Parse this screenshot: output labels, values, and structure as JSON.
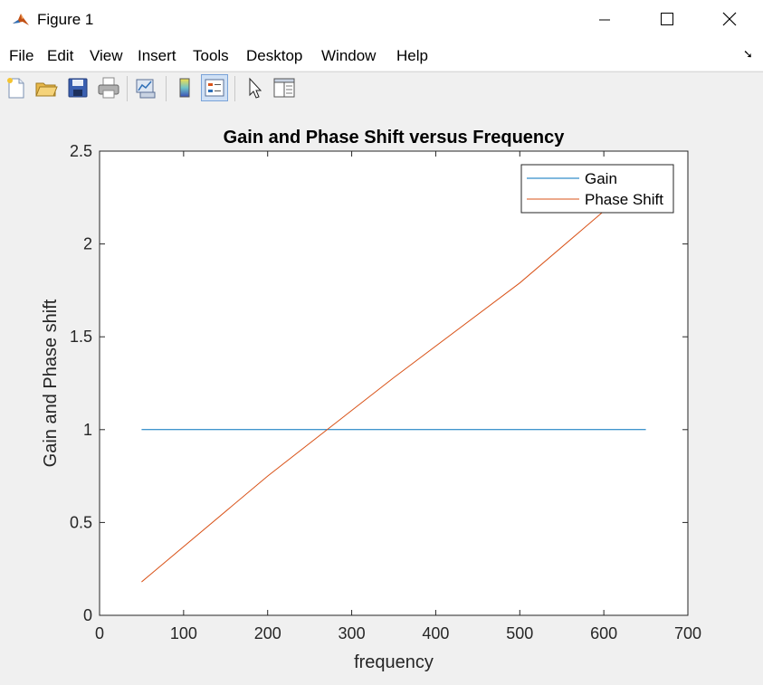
{
  "window": {
    "title": "Figure 1"
  },
  "menu": [
    "File",
    "Edit",
    "View",
    "Insert",
    "Tools",
    "Desktop",
    "Window",
    "Help"
  ],
  "toolbar": {
    "buttons": [
      "new-figure-icon",
      "open-file-icon",
      "save-icon",
      "print-icon",
      "link-plot-icon",
      "colorbar-icon",
      "legend-icon",
      "edit-plot-arrow-icon",
      "property-inspector-icon"
    ]
  },
  "chart_data": {
    "type": "line",
    "title": "Gain and Phase Shift versus Frequency",
    "xlabel": "frequency",
    "ylabel": "Gain and Phase shift",
    "xlim": [
      0,
      700
    ],
    "ylim": [
      0,
      2.5
    ],
    "xticks": [
      "0",
      "100",
      "200",
      "300",
      "400",
      "500",
      "600",
      "700"
    ],
    "yticks": [
      "0",
      "0.5",
      "1",
      "1.5",
      "2",
      "2.5"
    ],
    "legend_position": "top-right",
    "grid": false,
    "series": [
      {
        "name": "Gain",
        "color": "#0072bd",
        "x": [
          50,
          200,
          350,
          500,
          650
        ],
        "y": [
          1,
          1,
          1,
          1,
          1
        ]
      },
      {
        "name": "Phase Shift",
        "color": "#d95319",
        "x": [
          50,
          200,
          350,
          500,
          650
        ],
        "y": [
          0.18,
          0.75,
          1.28,
          1.79,
          2.37
        ]
      }
    ]
  }
}
